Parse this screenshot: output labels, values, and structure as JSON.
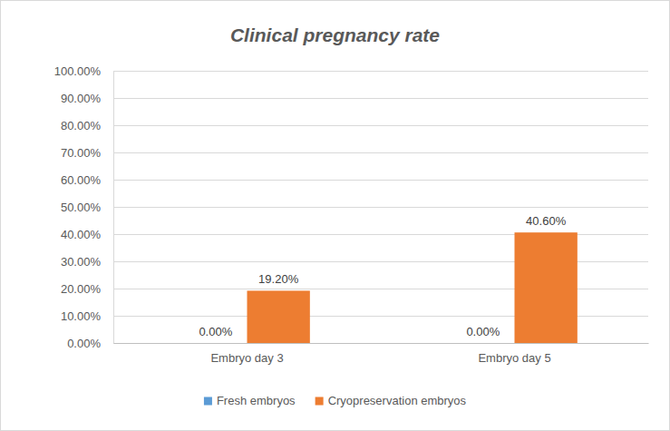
{
  "chart_data": {
    "type": "bar",
    "title": "Clinical pregnancy rate",
    "categories": [
      "Embryo day 3",
      "Embryo day 5"
    ],
    "series": [
      {
        "name": "Fresh embryos",
        "color": "#5b9bd5",
        "values": [
          0,
          0
        ],
        "value_labels": [
          "0.00%",
          "0.00%"
        ]
      },
      {
        "name": "Cryopreservation embryos",
        "color": "#ed7d31",
        "values": [
          19.2,
          40.6
        ],
        "value_labels": [
          "19.20%",
          "40.60%"
        ]
      }
    ],
    "ylim": [
      0,
      100
    ],
    "yticks": [
      {
        "value": 0,
        "label": "0.00%"
      },
      {
        "value": 10,
        "label": "10.00%"
      },
      {
        "value": 20,
        "label": "20.00%"
      },
      {
        "value": 30,
        "label": "30.00%"
      },
      {
        "value": 40,
        "label": "40.00%"
      },
      {
        "value": 50,
        "label": "50.00%"
      },
      {
        "value": 60,
        "label": "60.00%"
      },
      {
        "value": 70,
        "label": "70.00%"
      },
      {
        "value": 80,
        "label": "80.00%"
      },
      {
        "value": 90,
        "label": "90.00%"
      },
      {
        "value": 100,
        "label": "100.00%"
      }
    ],
    "grid": true,
    "data_labels": true,
    "legend": "bottom"
  }
}
